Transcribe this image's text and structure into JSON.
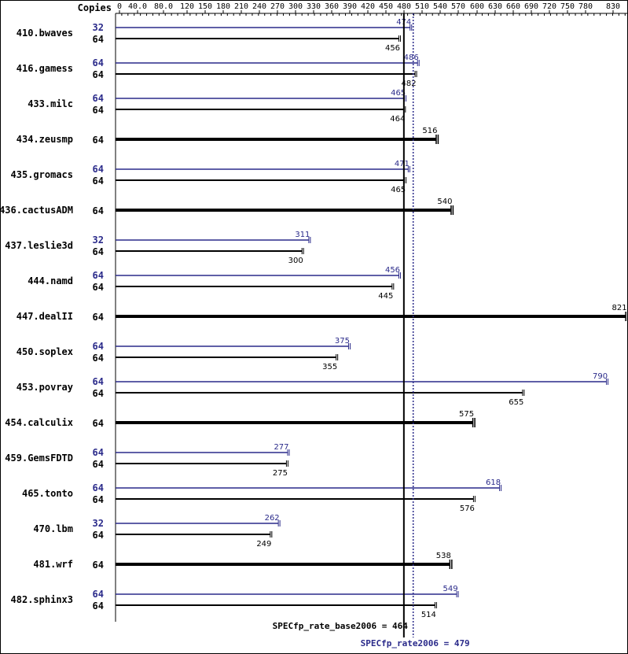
{
  "chart_data": {
    "type": "bar",
    "orientation": "horizontal",
    "copies_header": "Copies",
    "x_ticks": [
      "0",
      "40.0",
      "80.0",
      "120",
      "150",
      "180",
      "210",
      "240",
      "270",
      "300",
      "330",
      "360",
      "390",
      "420",
      "450",
      "480",
      "510",
      "540",
      "570",
      "600",
      "630",
      "660",
      "690",
      "720",
      "750",
      "780",
      "830"
    ],
    "xlim": [
      0,
      830
    ],
    "grid": false,
    "colors": {
      "peak": "#2a2a8a",
      "base": "#000000"
    },
    "categories": [
      "410.bwaves",
      "416.gamess",
      "433.milc",
      "434.zeusmp",
      "435.gromacs",
      "436.cactusADM",
      "437.leslie3d",
      "444.namd",
      "447.dealII",
      "450.soplex",
      "453.povray",
      "454.calculix",
      "459.GemsFDTD",
      "465.tonto",
      "470.lbm",
      "481.wrf",
      "482.sphinx3"
    ],
    "benchmarks": [
      {
        "name": "410.bwaves",
        "peak_copies": "32",
        "peak": 474,
        "base_copies": "64",
        "base": 456
      },
      {
        "name": "416.gamess",
        "peak_copies": "64",
        "peak": 486,
        "base_copies": "64",
        "base": 482
      },
      {
        "name": "433.milc",
        "peak_copies": "64",
        "peak": 465,
        "base_copies": "64",
        "base": 464
      },
      {
        "name": "434.zeusmp",
        "peak_copies": null,
        "peak": null,
        "base_copies": "64",
        "base": 516
      },
      {
        "name": "435.gromacs",
        "peak_copies": "64",
        "peak": 471,
        "base_copies": "64",
        "base": 465
      },
      {
        "name": "436.cactusADM",
        "peak_copies": null,
        "peak": null,
        "base_copies": "64",
        "base": 540
      },
      {
        "name": "437.leslie3d",
        "peak_copies": "32",
        "peak": 311,
        "base_copies": "64",
        "base": 300
      },
      {
        "name": "444.namd",
        "peak_copies": "64",
        "peak": 456,
        "base_copies": "64",
        "base": 445
      },
      {
        "name": "447.dealII",
        "peak_copies": null,
        "peak": null,
        "base_copies": "64",
        "base": 821
      },
      {
        "name": "450.soplex",
        "peak_copies": "64",
        "peak": 375,
        "base_copies": "64",
        "base": 355
      },
      {
        "name": "453.povray",
        "peak_copies": "64",
        "peak": 790,
        "base_copies": "64",
        "base": 655
      },
      {
        "name": "454.calculix",
        "peak_copies": null,
        "peak": null,
        "base_copies": "64",
        "base": 575
      },
      {
        "name": "459.GemsFDTD",
        "peak_copies": "64",
        "peak": 277,
        "base_copies": "64",
        "base": 275
      },
      {
        "name": "465.tonto",
        "peak_copies": "64",
        "peak": 618,
        "base_copies": "64",
        "base": 576
      },
      {
        "name": "470.lbm",
        "peak_copies": "32",
        "peak": 262,
        "base_copies": "64",
        "base": 249
      },
      {
        "name": "481.wrf",
        "peak_copies": null,
        "peak": null,
        "base_copies": "64",
        "base": 538
      },
      {
        "name": "482.sphinx3",
        "peak_copies": "64",
        "peak": 549,
        "base_copies": "64",
        "base": 514
      }
    ],
    "reference_lines": [
      {
        "name": "base",
        "label": "SPECfp_rate_base2006 = 464",
        "value": 464
      },
      {
        "name": "peak",
        "label": "SPECfp_rate2006 = 479",
        "value": 479
      }
    ]
  }
}
